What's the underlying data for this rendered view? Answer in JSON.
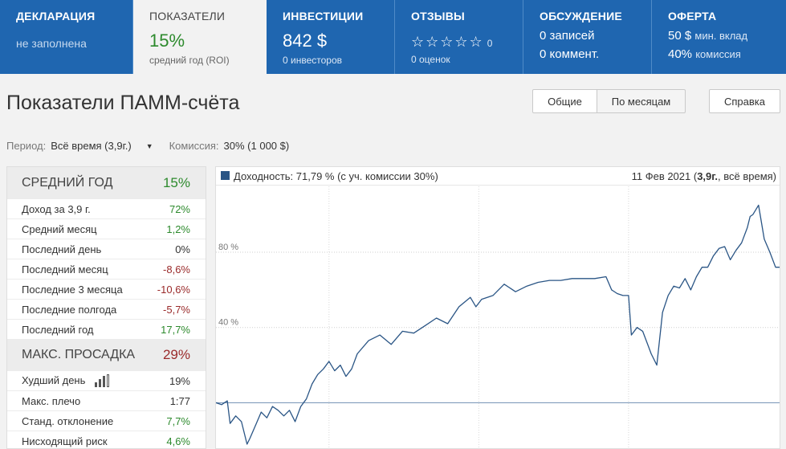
{
  "tabs": [
    {
      "key": "declaration",
      "title": "ДЕКЛАРАЦИЯ",
      "value": "не заполнена"
    },
    {
      "key": "indicators",
      "title": "ПОКАЗАТЕЛИ",
      "value": "15%",
      "sub": "средний год (ROI)"
    },
    {
      "key": "investments",
      "title": "ИНВЕСТИЦИИ",
      "value": "842 $",
      "sub": "0 инвесторов"
    },
    {
      "key": "reviews",
      "title": "ОТЗЫВЫ",
      "stars": "☆☆☆☆☆",
      "count": "0",
      "sub": "0 оценок"
    },
    {
      "key": "discussion",
      "title": "ОБСУЖДЕНИЕ",
      "line1": "0 записей",
      "line2": "0 коммент."
    },
    {
      "key": "offer",
      "title": "ОФЕРТА",
      "line1_value": "50 $",
      "line1_label": "мин. вклад",
      "line2_value": "40%",
      "line2_label": "комиссия"
    }
  ],
  "header": {
    "title": "Показатели ПАММ-счёта",
    "btn_general": "Общие",
    "btn_monthly": "По месяцам",
    "btn_help": "Справка"
  },
  "filters": {
    "period_label": "Период:",
    "period_value": "Всё время (3,9г.)",
    "commission_label": "Комиссия:",
    "commission_value": "30% (1 000 $)"
  },
  "stats": {
    "avg_year": {
      "label": "СРЕДНИЙ ГОД",
      "value": "15%"
    },
    "rows1": [
      {
        "label": "Доход за 3,9 г.",
        "value": "72%",
        "tone": "green"
      },
      {
        "label": "Средний месяц",
        "value": "1,2%",
        "tone": "green"
      },
      {
        "label": "Последний день",
        "value": "0%",
        "tone": "plain"
      },
      {
        "label": "Последний месяц",
        "value": "-8,6%",
        "tone": "red"
      },
      {
        "label": "Последние 3 месяца",
        "value": "-10,6%",
        "tone": "red"
      },
      {
        "label": "Последние полгода",
        "value": "-5,7%",
        "tone": "red"
      },
      {
        "label": "Последний год",
        "value": "17,7%",
        "tone": "green"
      }
    ],
    "drawdown": {
      "label": "МАКС. ПРОСАДКА",
      "value": "29%"
    },
    "rows2": [
      {
        "label": "Худший день",
        "value": "19%",
        "tone": "plain",
        "icon": "bar-chart-icon"
      },
      {
        "label": "Макс. плечо",
        "value": "1:77",
        "tone": "plain"
      },
      {
        "label": "Станд. отклонение",
        "value": "7,7%",
        "tone": "green"
      },
      {
        "label": "Нисходящий риск",
        "value": "4,6%",
        "tone": "green"
      }
    ]
  },
  "chart_head": {
    "legend": "Доходность: 71,79 % (с уч. комиссии 30%)",
    "date_prefix": "11 Фев 2021 (",
    "date_bold": "3,9г.",
    "date_suffix": ", всё время)"
  },
  "colors": {
    "line": "#2a5585",
    "positive": "#2d8a2d",
    "negative": "#9a2a2a",
    "nav": "#1f66b0"
  },
  "chart_data": {
    "type": "line",
    "title": "",
    "xlabel": "",
    "ylabel": "",
    "y_ticks": [
      "80 %",
      "40 %"
    ],
    "y_tick_values": [
      80,
      40
    ],
    "ylim": [
      -25,
      115
    ],
    "x_range": [
      0,
      1
    ],
    "grid": true,
    "series": [
      {
        "name": "Доходность",
        "x": [
          0,
          0.01,
          0.02,
          0.025,
          0.035,
          0.045,
          0.055,
          0.06,
          0.07,
          0.08,
          0.09,
          0.1,
          0.11,
          0.12,
          0.13,
          0.14,
          0.15,
          0.16,
          0.17,
          0.18,
          0.19,
          0.2,
          0.21,
          0.22,
          0.23,
          0.24,
          0.25,
          0.27,
          0.29,
          0.31,
          0.33,
          0.35,
          0.37,
          0.39,
          0.41,
          0.43,
          0.45,
          0.46,
          0.47,
          0.49,
          0.51,
          0.53,
          0.55,
          0.57,
          0.59,
          0.61,
          0.63,
          0.65,
          0.67,
          0.69,
          0.7,
          0.71,
          0.72,
          0.73,
          0.735,
          0.745,
          0.755,
          0.765,
          0.77,
          0.78,
          0.79,
          0.8,
          0.81,
          0.82,
          0.83,
          0.84,
          0.85,
          0.86,
          0.87,
          0.88,
          0.89,
          0.9,
          0.91,
          0.92,
          0.93,
          0.94,
          0.945,
          0.95,
          0.96,
          0.97,
          0.98,
          0.99,
          1.0
        ],
        "y": [
          0,
          -1,
          1,
          -11,
          -7,
          -10,
          -22,
          -19,
          -12,
          -5,
          -8,
          -2,
          -4,
          -7,
          -4,
          -10,
          -2,
          2,
          10,
          15,
          18,
          22,
          17,
          20,
          14,
          18,
          26,
          33,
          36,
          31,
          38,
          37,
          41,
          45,
          42,
          51,
          56,
          51,
          55,
          57,
          63,
          59,
          62,
          64,
          65,
          65,
          66,
          66,
          66,
          67,
          60,
          58,
          57,
          57,
          36,
          40,
          38,
          30,
          26,
          20,
          48,
          57,
          62,
          61,
          66,
          60,
          67,
          72,
          72,
          78,
          82,
          83,
          76,
          81,
          85,
          93,
          99,
          100,
          105,
          87,
          80,
          72,
          72
        ]
      }
    ]
  }
}
